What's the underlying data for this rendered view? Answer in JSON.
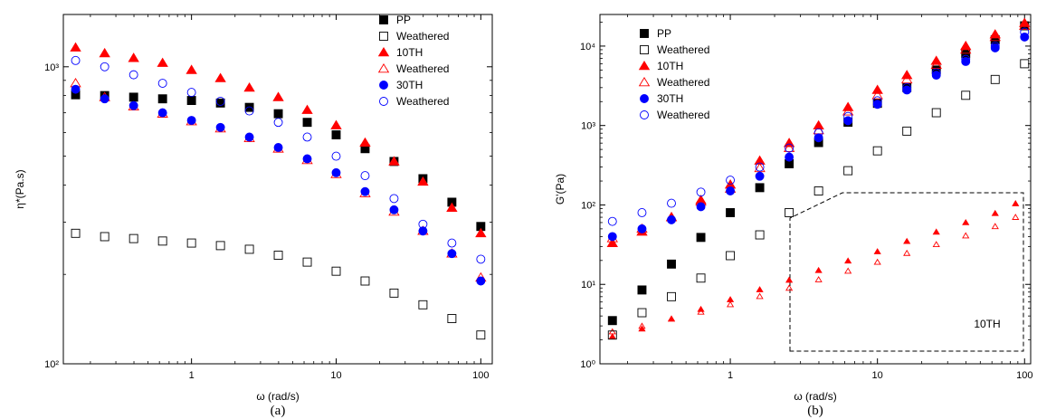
{
  "chart_data": [
    {
      "type": "scatter",
      "panel_label": "(a)",
      "xlabel": "ω (rad/s)",
      "ylabel": "η*(Pa.s)",
      "xscale": "log",
      "yscale": "log",
      "xlim": [
        0.13,
        120
      ],
      "ylim": [
        100,
        1500
      ],
      "xticks": [
        {
          "value": 1,
          "label": "1"
        },
        {
          "value": 10,
          "label": "10"
        },
        {
          "value": 100,
          "label": "100"
        }
      ],
      "yticks": [
        {
          "value": 100,
          "label": "10²"
        },
        {
          "value": 1000,
          "label": "10³"
        }
      ],
      "legend_position": "top-right",
      "x": [
        0.158,
        0.251,
        0.398,
        0.631,
        1.0,
        1.585,
        2.512,
        3.981,
        6.31,
        10.0,
        15.85,
        25.12,
        39.81,
        63.1,
        100.0
      ],
      "series": [
        {
          "name": "PP",
          "marker": "square",
          "filled": true,
          "color": "#000000",
          "values": [
            805,
            800,
            790,
            780,
            770,
            755,
            730,
            695,
            650,
            590,
            530,
            480,
            420,
            350,
            290
          ]
        },
        {
          "name": "Weathered",
          "marker": "square",
          "filled": false,
          "color": "#000000",
          "values": [
            275,
            268,
            264,
            259,
            255,
            250,
            243,
            232,
            220,
            205,
            190,
            173,
            158,
            142,
            125
          ]
        },
        {
          "name": "10TH",
          "marker": "triangle",
          "filled": true,
          "color": "#ff0000",
          "values": [
            1160,
            1110,
            1070,
            1030,
            975,
            915,
            850,
            790,
            715,
            635,
            555,
            480,
            410,
            335,
            275
          ]
        },
        {
          "name": "Weathered",
          "marker": "triangle",
          "filled": false,
          "color": "#ff0000",
          "values": [
            880,
            790,
            735,
            695,
            655,
            620,
            575,
            530,
            485,
            435,
            375,
            325,
            280,
            235,
            195
          ]
        },
        {
          "name": "30TH",
          "marker": "circle",
          "filled": true,
          "color": "#0000ff",
          "values": [
            840,
            780,
            740,
            700,
            660,
            625,
            580,
            535,
            490,
            440,
            380,
            330,
            280,
            235,
            190
          ]
        },
        {
          "name": "Weathered",
          "marker": "circle",
          "filled": false,
          "color": "#0000ff",
          "values": [
            1050,
            1000,
            940,
            880,
            820,
            765,
            710,
            650,
            580,
            500,
            430,
            360,
            295,
            255,
            225
          ]
        }
      ]
    },
    {
      "type": "scatter",
      "panel_label": "(b)",
      "xlabel": "ω (rad/s)",
      "ylabel": "G'(Pa)",
      "xscale": "log",
      "yscale": "log",
      "xlim": [
        0.13,
        110
      ],
      "ylim": [
        1,
        25000
      ],
      "xticks": [
        {
          "value": 1,
          "label": "1"
        },
        {
          "value": 10,
          "label": "10"
        },
        {
          "value": 100,
          "label": "100"
        }
      ],
      "yticks": [
        {
          "value": 1,
          "label": "10⁰"
        },
        {
          "value": 10,
          "label": "10¹"
        },
        {
          "value": 100,
          "label": "10²"
        },
        {
          "value": 1000,
          "label": "10³"
        },
        {
          "value": 10000,
          "label": "10⁴"
        }
      ],
      "legend_position": "top-left",
      "x": [
        0.158,
        0.251,
        0.398,
        0.631,
        1.0,
        1.585,
        2.512,
        3.981,
        6.31,
        10.0,
        15.85,
        25.12,
        39.81,
        63.1,
        100.0
      ],
      "series": [
        {
          "name": "PP",
          "marker": "square",
          "filled": true,
          "color": "#000000",
          "values": [
            3.5,
            8.5,
            18,
            39,
            80,
            165,
            330,
            610,
            1100,
            1900,
            3000,
            5000,
            8000,
            12000,
            18000
          ]
        },
        {
          "name": "Weathered",
          "marker": "square",
          "filled": false,
          "color": "#000000",
          "values": [
            2.3,
            4.4,
            7,
            12,
            23,
            42,
            80,
            150,
            270,
            480,
            850,
            1450,
            2400,
            3800,
            6000
          ]
        },
        {
          "name": "10TH",
          "marker": "triangle",
          "filled": true,
          "color": "#ff0000",
          "values": [
            33,
            46,
            70,
            115,
            180,
            360,
            600,
            1000,
            1700,
            2800,
            4300,
            6500,
            10000,
            14000,
            19500
          ]
        },
        {
          "name": "Weathered",
          "marker": "triangle",
          "filled": false,
          "color": "#ff0000",
          "values": [
            38,
            50,
            70,
            110,
            160,
            290,
            520,
            870,
            1500,
            2400,
            3800,
            5800,
            9000,
            13000,
            18000
          ]
        },
        {
          "name": "30TH",
          "marker": "circle",
          "filled": true,
          "color": "#0000ff",
          "values": [
            40,
            50,
            65,
            95,
            150,
            230,
            400,
            700,
            1150,
            1850,
            2800,
            4300,
            6400,
            9500,
            13000
          ]
        },
        {
          "name": "Weathered",
          "marker": "circle",
          "filled": false,
          "color": "#0000ff",
          "values": [
            62,
            80,
            105,
            145,
            205,
            300,
            520,
            810,
            1300,
            2050,
            3000,
            4600,
            6800,
            10000,
            15000
          ]
        }
      ],
      "inset": {
        "label": "10TH",
        "series": [
          {
            "marker": "triangle",
            "filled": true,
            "color": "#ff0000",
            "values": [
              2.3,
              2.8,
              3.6,
              4.6,
              5.9,
              7.6,
              9.7,
              12.4,
              15.8,
              20,
              26,
              33,
              42,
              53,
              68
            ]
          },
          {
            "marker": "triangle",
            "filled": false,
            "color": "#ff0000",
            "values": [
              2.6,
              3.0,
              3.6,
              4.3,
              5.2,
              6.4,
              7.9,
              9.8,
              12.2,
              15.3,
              19.2,
              24,
              30,
              38,
              48
            ]
          }
        ]
      }
    }
  ]
}
